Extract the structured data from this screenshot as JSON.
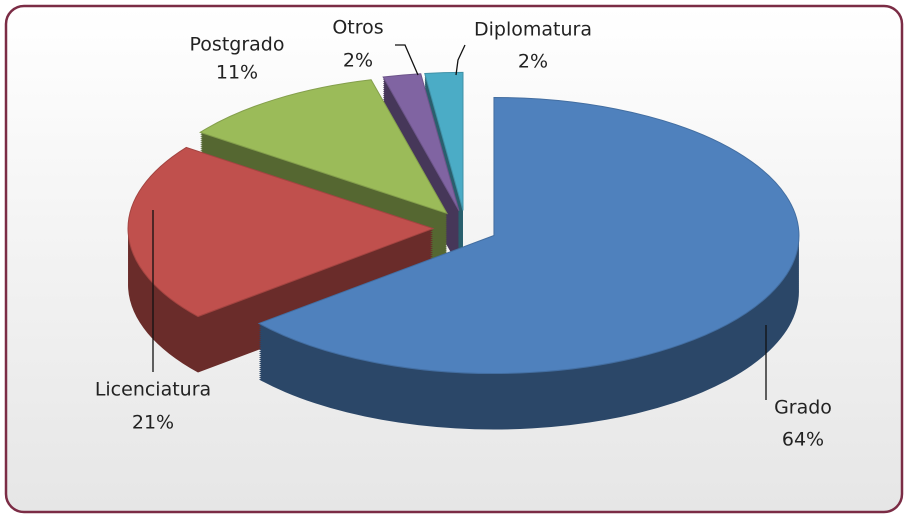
{
  "chart_data": {
    "type": "pie",
    "categories": [
      "Grado",
      "Licenciatura",
      "Postgrado",
      "Otros",
      "Diplomatura"
    ],
    "values": [
      64,
      21,
      11,
      2,
      2
    ],
    "value_labels": [
      "64%",
      "21%",
      "11%",
      "2%",
      "2%"
    ],
    "colors": [
      "#4f81bd",
      "#c0504d",
      "#9bbb59",
      "#8064a2",
      "#4bacc6"
    ],
    "exploded": true,
    "three_d": true
  }
}
